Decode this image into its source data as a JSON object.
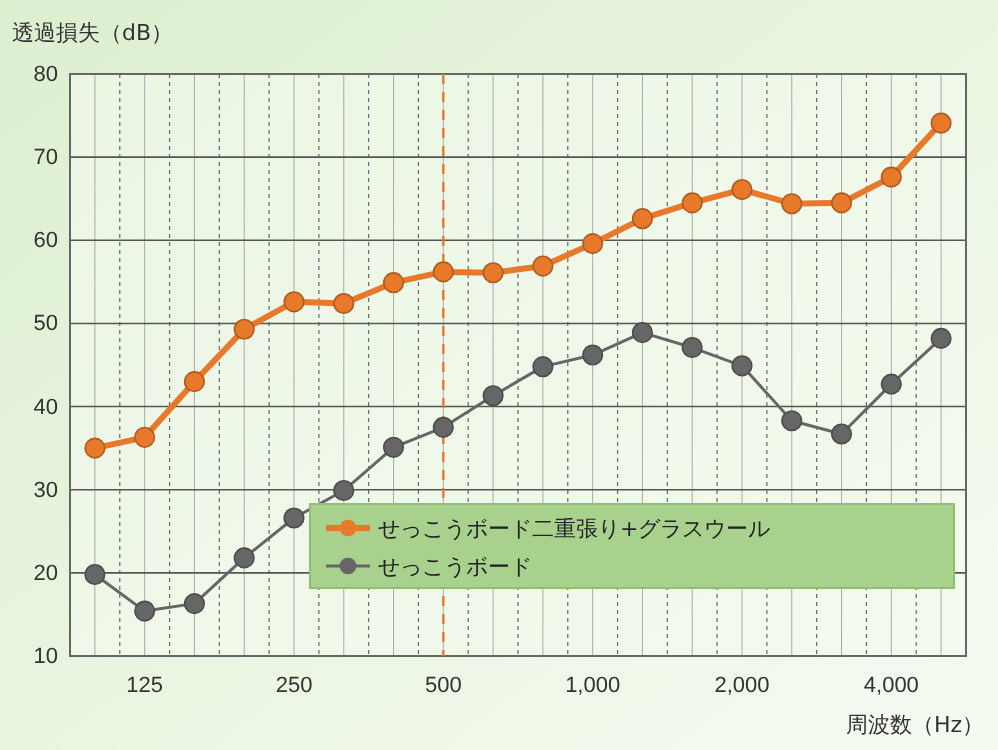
{
  "chart_data": {
    "type": "line",
    "ylabel": "透過損失（dB）",
    "xlabel": "周波数（Hz）",
    "categories": [
      null,
      "125",
      null,
      null,
      "250",
      null,
      null,
      "500",
      null,
      null,
      "1,000",
      null,
      null,
      "2,000",
      null,
      null,
      "4,000",
      null
    ],
    "series": [
      {
        "name": "せっこうボード二重張り+グラスウール",
        "color": "#e8792b",
        "values": [
          35.0,
          36.3,
          43.0,
          49.3,
          52.6,
          52.4,
          54.9,
          56.2,
          56.1,
          56.9,
          59.6,
          62.6,
          64.5,
          66.1,
          64.4,
          64.5,
          67.6,
          74.1
        ]
      },
      {
        "name": "せっこうボード",
        "color": "#666666",
        "values": [
          19.8,
          15.4,
          16.3,
          21.8,
          26.6,
          29.9,
          35.1,
          37.5,
          41.3,
          44.8,
          46.2,
          48.9,
          47.1,
          44.9,
          38.3,
          36.7,
          42.7,
          48.2
        ]
      }
    ],
    "ylim": [
      10,
      80
    ],
    "yticks": [
      10,
      20,
      30,
      40,
      50,
      60,
      70,
      80
    ],
    "grid": true,
    "legend": "bottom right",
    "marker": "circle",
    "line_style": "solid",
    "ref_lines": [
      {
        "axis": "x",
        "value": "500",
        "color": "#e8792b",
        "line_style": "dashed"
      }
    ]
  }
}
